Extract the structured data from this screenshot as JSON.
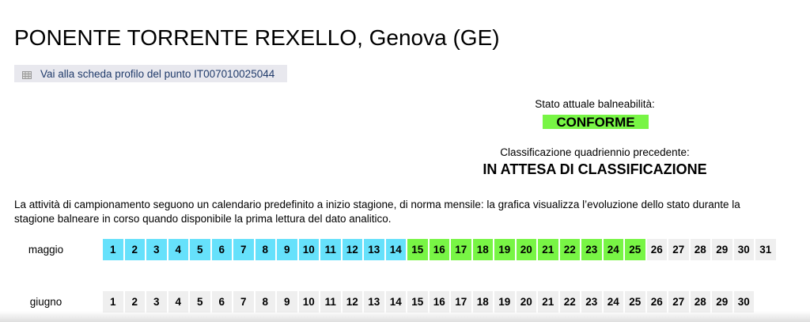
{
  "title": "PONENTE TORRENTE REXELLO, Genova (GE)",
  "profile_link": {
    "label": "Vai alla scheda profilo del punto IT007010025044",
    "icon": "table-grid-icon"
  },
  "current_status": {
    "label": "Stato attuale balneabilità:",
    "value": "CONFORME",
    "color": "#78f545"
  },
  "classification": {
    "label": "Classificazione quadriennio precedente:",
    "value": "IN ATTESA DI CLASSIFICAZIONE"
  },
  "description": "La attività di campionamento seguono un calendario predefinito a inizio stagione, di norma mensile: la grafica visualizza l’evoluzione dello stato durante la stagione balneare in corso quando disponibile la prima lettura del dato analitico.",
  "status_colors": {
    "blue": "#66e1fb",
    "green": "#78f545",
    "none": "#efefef"
  },
  "months": [
    {
      "name": "maggio",
      "days": 31,
      "status": [
        "blue",
        "blue",
        "blue",
        "blue",
        "blue",
        "blue",
        "blue",
        "blue",
        "blue",
        "blue",
        "blue",
        "blue",
        "blue",
        "blue",
        "green",
        "green",
        "green",
        "green",
        "green",
        "green",
        "green",
        "green",
        "green",
        "green",
        "green",
        "none",
        "none",
        "none",
        "none",
        "none",
        "none"
      ]
    },
    {
      "name": "giugno",
      "days": 30,
      "status": [
        "none",
        "none",
        "none",
        "none",
        "none",
        "none",
        "none",
        "none",
        "none",
        "none",
        "none",
        "none",
        "none",
        "none",
        "none",
        "none",
        "none",
        "none",
        "none",
        "none",
        "none",
        "none",
        "none",
        "none",
        "none",
        "none",
        "none",
        "none",
        "none",
        "none"
      ]
    }
  ]
}
